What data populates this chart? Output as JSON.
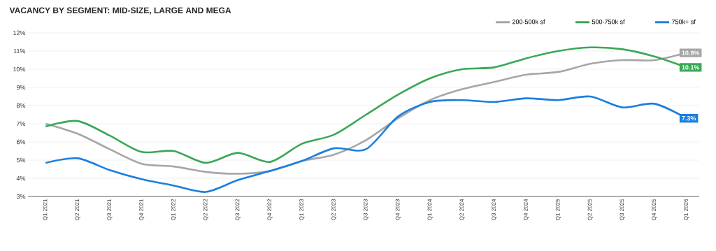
{
  "chart_data": {
    "type": "line",
    "title": "VACANCY BY SEGMENT: MID-SIZE, LARGE AND MEGA",
    "categories": [
      "Q1 2021",
      "Q2 2021",
      "Q3 2021",
      "Q4 2021",
      "Q1 2022",
      "Q2 2022",
      "Q3 2022",
      "Q4 2022",
      "Q1 2023",
      "Q2 2023",
      "Q3 2023",
      "Q4 2023",
      "Q1 2024",
      "Q2 2024",
      "Q3 2024",
      "Q4 2024",
      "Q1 2025",
      "Q2 2025",
      "Q3 2025",
      "Q4 2025",
      "Q1 2026"
    ],
    "series": [
      {
        "name": "200-500k sf",
        "color": "#a6a6a6",
        "values": [
          7.0,
          6.45,
          5.6,
          4.8,
          4.65,
          4.35,
          4.25,
          4.4,
          4.95,
          5.3,
          6.1,
          7.3,
          8.3,
          8.9,
          9.3,
          9.7,
          9.85,
          10.3,
          10.5,
          10.5,
          10.9
        ],
        "value_labels": [
          null,
          null,
          null,
          null,
          null,
          null,
          null,
          null,
          null,
          null,
          null,
          null,
          null,
          null,
          null,
          null,
          null,
          null,
          null,
          null,
          "10.9%"
        ]
      },
      {
        "name": "500-750k sf",
        "color": "#3aa757",
        "values": [
          6.85,
          7.15,
          6.35,
          5.45,
          5.5,
          4.85,
          5.4,
          4.9,
          5.9,
          6.4,
          7.5,
          8.6,
          9.5,
          10.0,
          10.1,
          10.6,
          11.0,
          11.2,
          11.1,
          10.7,
          10.1
        ],
        "value_labels": [
          null,
          null,
          null,
          null,
          null,
          null,
          null,
          null,
          null,
          null,
          null,
          null,
          null,
          null,
          null,
          null,
          null,
          null,
          null,
          null,
          "10.1%"
        ]
      },
      {
        "name": "750k+ sf",
        "color": "#1a7fe0",
        "values": [
          4.85,
          5.1,
          4.45,
          3.95,
          3.6,
          3.25,
          3.9,
          4.4,
          4.95,
          5.65,
          5.6,
          7.4,
          8.2,
          8.3,
          8.2,
          8.4,
          8.3,
          8.5,
          7.9,
          8.1,
          7.3
        ],
        "value_labels": [
          null,
          null,
          null,
          null,
          null,
          null,
          null,
          null,
          null,
          null,
          null,
          null,
          null,
          null,
          null,
          null,
          null,
          null,
          null,
          null,
          "7.3%"
        ]
      }
    ],
    "ylim": [
      3,
      12
    ],
    "yticks": [
      {
        "value": 3,
        "label": "3%"
      },
      {
        "value": 4,
        "label": "4%"
      },
      {
        "value": 5,
        "label": "5%"
      },
      {
        "value": 6,
        "label": "6%"
      },
      {
        "value": 7,
        "label": "7%"
      },
      {
        "value": 8,
        "label": "8%"
      },
      {
        "value": 9,
        "label": "9%"
      },
      {
        "value": 10,
        "label": "10%"
      },
      {
        "value": 11,
        "label": "11%"
      },
      {
        "value": 12,
        "label": "12%"
      }
    ],
    "grid": "y",
    "legend": "top right",
    "marker": "none",
    "line_style": "solid"
  }
}
